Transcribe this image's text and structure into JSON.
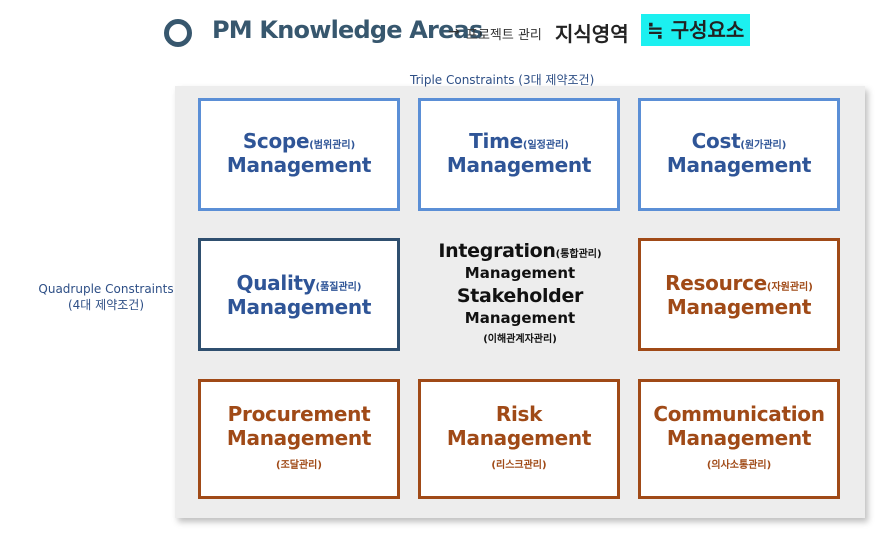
{
  "title": {
    "main": "PM Knowledge Areas",
    "arrow": "→",
    "ko_small": "프로젝트 관리",
    "ko_big": "지식영역",
    "highlight": "≒ 구성요소"
  },
  "labels": {
    "triple": "Triple Constraints (3대 제약조건)",
    "quad_line1": "Quadruple Constraints",
    "quad_line2": "(4대 제약조건)"
  },
  "boxes": {
    "scope": {
      "name": "Scope",
      "ko": "(범위관리)",
      "mgmt": "Management"
    },
    "time": {
      "name": "Time",
      "ko": "(일정관리)",
      "mgmt": "Management"
    },
    "cost": {
      "name": "Cost",
      "ko": "(원가관리)",
      "mgmt": "Management"
    },
    "quality": {
      "name": "Quality",
      "ko": "(품질관리)",
      "mgmt": "Management"
    },
    "resource": {
      "name": "Resource",
      "ko": "(자원관리)",
      "mgmt": "Management"
    },
    "procurement": {
      "name": "Procurement",
      "mgmt": "Management",
      "ko": "(조달관리)"
    },
    "risk": {
      "name": "Risk",
      "mgmt": "Management",
      "ko": "(리스크관리)"
    },
    "communication": {
      "name": "Communication",
      "mgmt": "Management",
      "ko": "(의사소통관리)"
    }
  },
  "center": {
    "integration": "Integration",
    "integration_ko": "(통합관리)",
    "mgmt1": "Management",
    "stakeholder": "Stakeholder",
    "mgmt2": "Management",
    "stakeholder_ko": "(이해관계자관리)"
  },
  "colors": {
    "blue_border": "#5b8fd6",
    "navy_border": "#2f4f6f",
    "orange_border": "#a04a17",
    "highlight": "#1cf0f0",
    "title": "#37576e"
  }
}
